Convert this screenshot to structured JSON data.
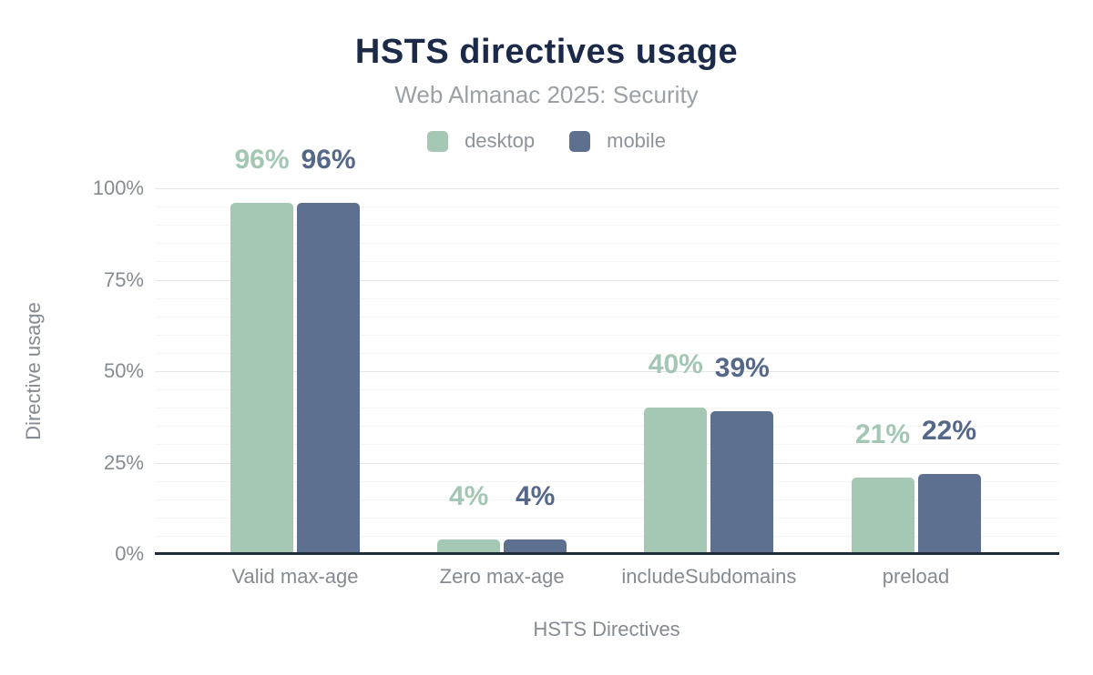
{
  "chart_data": {
    "type": "bar",
    "title": "HSTS directives usage",
    "subtitle": "Web Almanac 2025: Security",
    "xlabel": "HSTS Directives",
    "ylabel": "Directive usage",
    "categories": [
      "Valid max-age",
      "Zero max-age",
      "includeSubdomains",
      "preload"
    ],
    "series": [
      {
        "name": "desktop",
        "color": "#a5c8b5",
        "label_color": "#a3c7b2",
        "values": [
          96,
          4,
          40,
          21
        ]
      },
      {
        "name": "mobile",
        "color": "#5e708f",
        "label_color": "#56688a",
        "values": [
          96,
          4,
          39,
          22
        ]
      }
    ],
    "value_suffix": "%",
    "ylim": [
      0,
      100
    ],
    "yticks": [
      0,
      25,
      50,
      75,
      100
    ],
    "ytick_suffix": "%",
    "minor_tick_step": 5,
    "grid": "on",
    "legend_position": "top"
  },
  "style": {
    "title_color": "#1b2a49",
    "subtitle_color": "#99a0a6",
    "axis_text_color": "#848b92",
    "axis_line_color": "#212d3a",
    "major_grid_color": "#e4e6e8",
    "minor_grid_color": "#f5f5f5",
    "background": "#ffffff"
  }
}
